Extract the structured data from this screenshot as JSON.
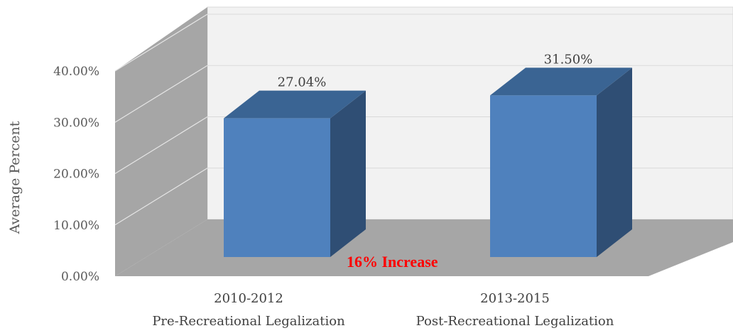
{
  "chart_data": {
    "type": "bar",
    "categories": [
      {
        "line1": "2010-2012",
        "line2": "Pre-Recreational Legalization"
      },
      {
        "line1": "2013-2015",
        "line2": "Post-Recreational Legalization"
      }
    ],
    "values": [
      27.04,
      31.5
    ],
    "data_labels": [
      "27.04%",
      "31.50%"
    ],
    "ylabel": "Average Percent",
    "ylim": [
      0,
      40
    ],
    "yticks": [
      0,
      10,
      20,
      30,
      40
    ],
    "ytick_labels": [
      "0.00%",
      "10.00%",
      "20.00%",
      "30.00%",
      "40.00%"
    ],
    "annotation": "16% Increase",
    "colors": {
      "bar_front": "#4f81bd",
      "bar_top": "#3a6493",
      "bar_side": "#2f4e74",
      "back_wall": "#f2f2f2",
      "side_wall": "#a6a6a6",
      "floor": "#a6a6a6",
      "gridline": "#d9d9d9",
      "annotation": "#ff0000"
    },
    "projection": "3d",
    "grid": true
  }
}
